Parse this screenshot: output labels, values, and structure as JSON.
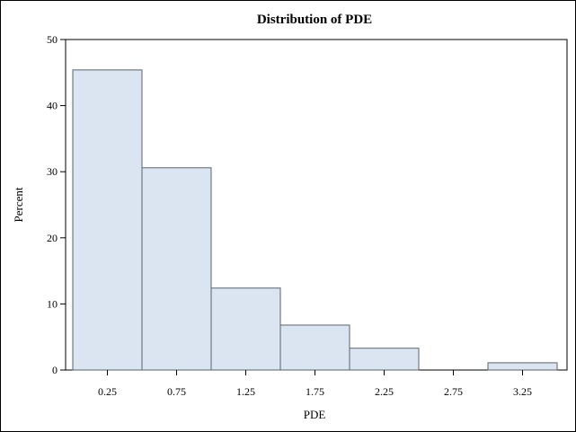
{
  "chart_data": {
    "type": "bar",
    "title": "Distribution of PDE",
    "xlabel": "PDE",
    "ylabel": "Percent",
    "categories": [
      "0.25",
      "0.75",
      "1.25",
      "1.75",
      "2.25",
      "2.75",
      "3.25"
    ],
    "values": [
      45.4,
      30.6,
      12.4,
      6.8,
      3.3,
      0,
      1.1
    ],
    "yticks": [
      "0",
      "10",
      "20",
      "30",
      "40",
      "50"
    ],
    "ylim": [
      0,
      50
    ],
    "grid": false,
    "legend": "none",
    "bar_fill": "#dbe5f1",
    "bar_stroke": "#5a6370"
  }
}
